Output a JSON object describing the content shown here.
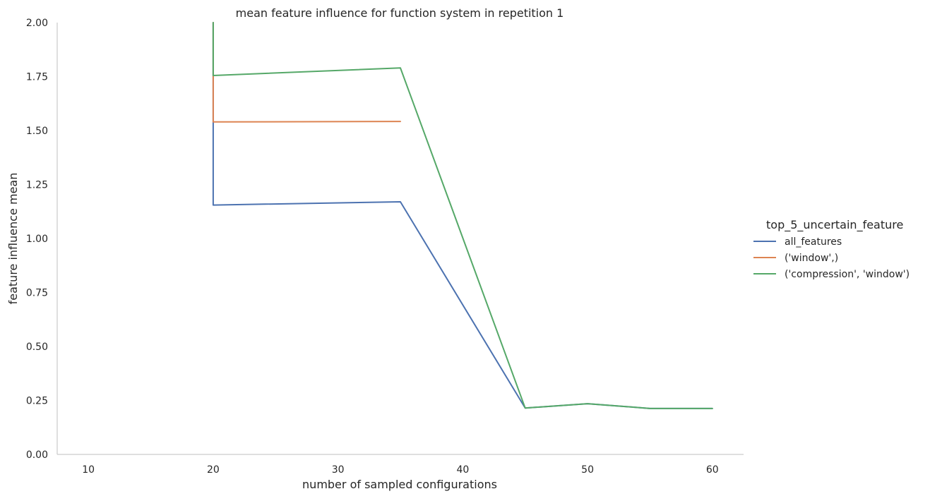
{
  "chart_data": {
    "type": "line",
    "title": "mean feature influence for function system in repetition 1",
    "xlabel": "number of sampled configurations",
    "ylabel": "feature influence mean",
    "xlim": [
      7.5,
      62.5
    ],
    "ylim": [
      0,
      2
    ],
    "x_ticks": [
      10,
      20,
      30,
      40,
      50,
      60
    ],
    "y_ticks": [
      0.0,
      0.25,
      0.5,
      0.75,
      1.0,
      1.25,
      1.5,
      1.75,
      2.0
    ],
    "y_tick_labels": [
      "0.00",
      "0.25",
      "0.50",
      "0.75",
      "1.00",
      "1.25",
      "1.50",
      "1.75",
      "2.00"
    ],
    "grid": false,
    "legend": {
      "title": "top_5_uncertain_feature",
      "placement": "right"
    },
    "series": [
      {
        "name": "all_features",
        "color": "#4c72b0",
        "points": [
          [
            20,
            2.0
          ],
          [
            20,
            1.155
          ],
          [
            35,
            1.17
          ],
          [
            45,
            0.215
          ],
          [
            50,
            0.235
          ],
          [
            55,
            0.213
          ],
          [
            60,
            0.213
          ]
        ]
      },
      {
        "name": "('window',)",
        "color": "#dd8452",
        "points": [
          [
            20,
            2.0
          ],
          [
            20,
            1.54
          ],
          [
            35,
            1.542
          ]
        ]
      },
      {
        "name": "('compression', 'window')",
        "color": "#55a868",
        "points": [
          [
            20,
            2.0
          ],
          [
            20,
            1.755
          ],
          [
            35,
            1.79
          ],
          [
            45,
            0.215
          ],
          [
            50,
            0.235
          ],
          [
            55,
            0.213
          ],
          [
            60,
            0.213
          ]
        ]
      }
    ]
  }
}
